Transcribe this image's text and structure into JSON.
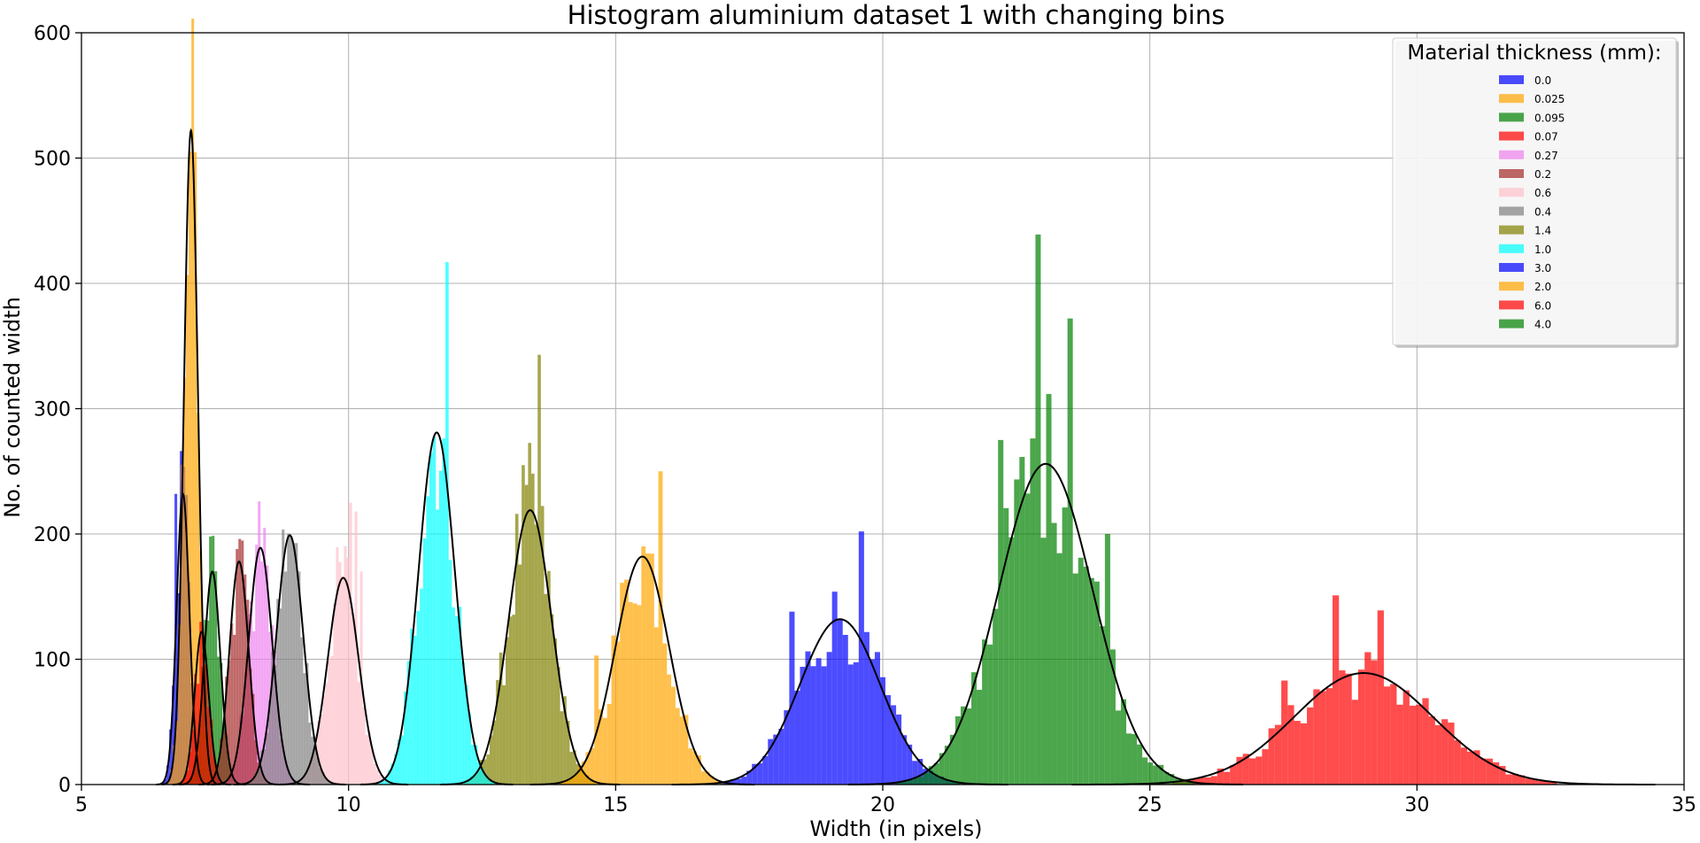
{
  "chart_data": {
    "type": "histogram",
    "title": "Histogram aluminium dataset 1 with changing bins",
    "xlabel": "Width (in pixels)",
    "ylabel": "No. of counted width",
    "xlim": [
      5,
      35
    ],
    "ylim": [
      0,
      600
    ],
    "xticks": [
      5,
      10,
      15,
      20,
      25,
      30,
      35
    ],
    "yticks": [
      0,
      100,
      200,
      300,
      400,
      500,
      600
    ],
    "grid": true,
    "legend": {
      "title": "Material thickness (mm):",
      "position": "top-right"
    },
    "fit_curve_color": "#000000",
    "series": [
      {
        "name": "0.0",
        "color": "#0000ff",
        "opacity": 0.7,
        "mean": 6.9,
        "sd": 0.12,
        "peak": 232,
        "bin": 0.05,
        "spikes": [
          [
            6.78,
            232
          ]
        ]
      },
      {
        "name": "0.025",
        "color": "#ffa500",
        "opacity": 0.7,
        "mean": 7.05,
        "sd": 0.13,
        "peak": 522,
        "bin": 0.05,
        "spikes": [
          [
            7.05,
            505
          ]
        ]
      },
      {
        "name": "0.095",
        "color": "#008000",
        "opacity": 0.7,
        "mean": 7.45,
        "sd": 0.15,
        "peak": 170,
        "bin": 0.05,
        "spikes": [
          [
            7.42,
            198
          ]
        ]
      },
      {
        "name": "0.07",
        "color": "#ff0000",
        "opacity": 0.7,
        "mean": 7.25,
        "sd": 0.13,
        "peak": 122,
        "bin": 0.05,
        "spikes": [
          [
            7.22,
            130
          ]
        ]
      },
      {
        "name": "0.27",
        "color": "#ee82ee",
        "opacity": 0.7,
        "mean": 8.35,
        "sd": 0.22,
        "peak": 189,
        "bin": 0.05,
        "spikes": [
          [
            8.33,
            226
          ]
        ]
      },
      {
        "name": "0.2",
        "color": "#a52a2a",
        "opacity": 0.7,
        "mean": 7.95,
        "sd": 0.18,
        "peak": 178,
        "bin": 0.05,
        "spikes": [
          [
            7.92,
            188
          ]
        ]
      },
      {
        "name": "0.6",
        "color": "#ffc0cb",
        "opacity": 0.7,
        "mean": 9.9,
        "sd": 0.29,
        "peak": 165,
        "bin": 0.05,
        "spikes": [
          [
            10.02,
            225
          ],
          [
            10.12,
            218
          ],
          [
            10.22,
            170
          ]
        ]
      },
      {
        "name": "0.4",
        "color": "#808080",
        "opacity": 0.7,
        "mean": 8.9,
        "sd": 0.25,
        "peak": 199,
        "bin": 0.05,
        "spikes": [
          [
            8.95,
            198
          ]
        ]
      },
      {
        "name": "1.4",
        "color": "#808000",
        "opacity": 0.7,
        "mean": 13.4,
        "sd": 0.4,
        "peak": 219,
        "bin": 0.06,
        "spikes": [
          [
            13.55,
            343
          ]
        ]
      },
      {
        "name": "1.0",
        "color": "#00ffff",
        "opacity": 0.7,
        "mean": 11.65,
        "sd": 0.34,
        "peak": 281,
        "bin": 0.06,
        "spikes": [
          [
            11.85,
            417
          ]
        ]
      },
      {
        "name": "3.0",
        "color": "#0000ff",
        "opacity": 0.7,
        "mean": 19.2,
        "sd": 0.75,
        "peak": 132,
        "bin": 0.1,
        "spikes": [
          [
            19.65,
            202
          ],
          [
            18.35,
            138
          ]
        ]
      },
      {
        "name": "2.0",
        "color": "#ffa500",
        "opacity": 0.7,
        "mean": 15.5,
        "sd": 0.5,
        "peak": 182,
        "bin": 0.08,
        "spikes": [
          [
            15.85,
            250
          ],
          [
            14.65,
            103
          ]
        ]
      },
      {
        "name": "6.0",
        "color": "#ff0000",
        "opacity": 0.7,
        "mean": 29.0,
        "sd": 1.3,
        "peak": 89,
        "bin": 0.12,
        "spikes": [
          [
            28.45,
            151
          ],
          [
            29.35,
            139
          ],
          [
            27.55,
            83
          ]
        ]
      },
      {
        "name": "4.0",
        "color": "#008000",
        "opacity": 0.7,
        "mean": 23.05,
        "sd": 0.88,
        "peak": 256,
        "bin": 0.1,
        "spikes": [
          [
            22.95,
            439
          ],
          [
            23.55,
            372
          ],
          [
            22.25,
            275
          ],
          [
            24.25,
            200
          ]
        ]
      }
    ]
  }
}
